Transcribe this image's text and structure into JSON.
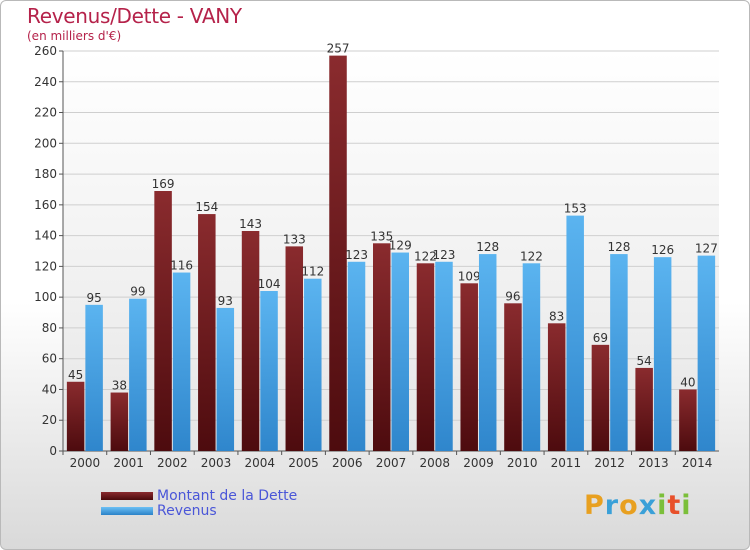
{
  "chart_data": {
    "type": "bar",
    "title": "Revenus/Dette - VANY",
    "subtitle": "(en milliers d'€)",
    "categories": [
      "2000",
      "2001",
      "2002",
      "2003",
      "2004",
      "2005",
      "2006",
      "2007",
      "2008",
      "2009",
      "2010",
      "2011",
      "2012",
      "2013",
      "2014"
    ],
    "series": [
      {
        "name": "Montant de la Dette",
        "color": "#6b1518",
        "values": [
          45,
          38,
          169,
          154,
          143,
          133,
          257,
          135,
          122,
          109,
          96,
          83,
          69,
          54,
          40
        ]
      },
      {
        "name": "Revenus",
        "color": "#4aa3e6",
        "values": [
          95,
          99,
          116,
          93,
          104,
          112,
          123,
          129,
          123,
          128,
          122,
          153,
          128,
          126,
          127
        ]
      }
    ],
    "ylim": [
      0,
      260
    ],
    "yticks": [
      0,
      20,
      40,
      60,
      80,
      100,
      120,
      140,
      160,
      180,
      200,
      220,
      240,
      260
    ],
    "grid": true,
    "legend_position": "bottom-left"
  },
  "legend": {
    "debt_label": "Montant de la Dette",
    "revenue_label": "Revenus"
  },
  "logo": {
    "letters": [
      "P",
      "r",
      "o",
      "x",
      "i",
      "t",
      "i"
    ],
    "colors": [
      "#e8a020",
      "#3aa0d8",
      "#e8a020",
      "#3aa0d8",
      "#7bbf3a",
      "#e8502a",
      "#7bbf3a"
    ]
  }
}
